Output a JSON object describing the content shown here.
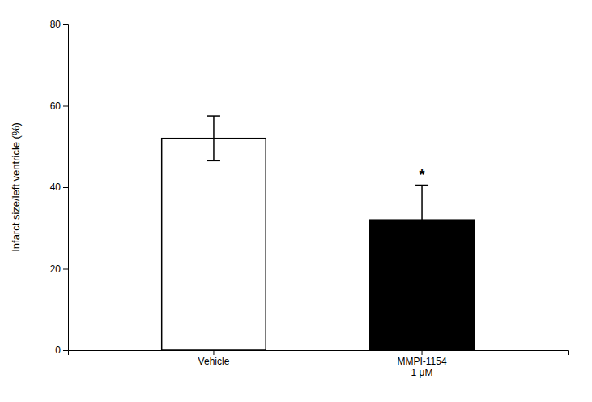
{
  "chart_data": {
    "type": "bar",
    "categories": [
      "Vehicle",
      "MMPI-1154\n1 μM"
    ],
    "values": [
      52.0,
      32.0
    ],
    "errors": [
      5.5,
      8.5
    ],
    "colors": [
      "#ffffff",
      "#000000"
    ],
    "ylabel": "Infarct size/left ventricle (%)",
    "ylim": [
      0,
      80
    ],
    "yticks": [
      0,
      20,
      40,
      60,
      80
    ],
    "annotations": [
      {
        "text": "*",
        "category": "MMPI-1154\n1 μM"
      }
    ],
    "grid": false
  }
}
